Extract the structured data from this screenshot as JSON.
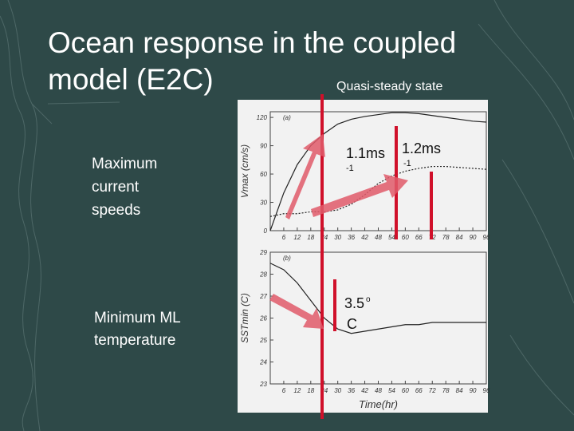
{
  "slide": {
    "title_line1": "Ocean response in the coupled",
    "title_line2": "model (E2C)",
    "subtitle": "Quasi-steady state",
    "label_top": [
      "Maximum",
      "current",
      "speeds"
    ],
    "label_bottom": [
      "Minimum ML",
      "temperature"
    ],
    "annotations": [
      {
        "text": "1.1ms",
        "sup": "-1"
      },
      {
        "text": "1.2ms",
        "sup": "-1"
      },
      {
        "text": "3.5",
        "sup": "o",
        "unit": "C"
      }
    ]
  },
  "chart_data": [
    {
      "type": "line",
      "panel": "(a)",
      "y_label": "Vmax (cm/s)",
      "x": [
        0,
        6,
        12,
        18,
        24,
        30,
        36,
        42,
        48,
        54,
        60,
        66,
        72,
        78,
        84,
        90,
        96
      ],
      "series": [
        {
          "color": "#222222",
          "dashed": false,
          "values": [
            0,
            40,
            70,
            90,
            103,
            113,
            118,
            121,
            123,
            125,
            125,
            124,
            122,
            120,
            118,
            116,
            115
          ]
        },
        {
          "color": "#222222",
          "dashed": true,
          "values": [
            15,
            18,
            18,
            20,
            20,
            22,
            28,
            38,
            50,
            58,
            63,
            66,
            68,
            68,
            67,
            66,
            65
          ]
        }
      ],
      "xlim": [
        0,
        96
      ],
      "xticks": [
        6,
        12,
        18,
        24,
        30,
        36,
        42,
        48,
        54,
        60,
        66,
        72,
        78,
        84,
        90,
        96
      ],
      "ylim": [
        0,
        126
      ],
      "yticks": [
        0,
        30,
        60,
        90,
        120
      ]
    },
    {
      "type": "line",
      "panel": "(b)",
      "y_label": "SSTmin (C)",
      "x_label": "Time(hr)",
      "x": [
        0,
        6,
        12,
        18,
        24,
        30,
        36,
        42,
        48,
        54,
        60,
        66,
        72,
        78,
        84,
        90,
        96
      ],
      "series": [
        {
          "color": "#222222",
          "dashed": false,
          "values": [
            28.5,
            28.2,
            27.6,
            26.8,
            26.0,
            25.5,
            25.3,
            25.4,
            25.5,
            25.6,
            25.7,
            25.7,
            25.8,
            25.8,
            25.8,
            25.8,
            25.8
          ]
        }
      ],
      "xlim": [
        0,
        96
      ],
      "xticks": [
        6,
        12,
        18,
        24,
        30,
        36,
        42,
        48,
        54,
        60,
        66,
        72,
        78,
        84,
        90,
        96
      ],
      "ylim": [
        23,
        29
      ],
      "yticks": [
        23,
        24,
        25,
        26,
        27,
        28,
        29
      ]
    }
  ]
}
